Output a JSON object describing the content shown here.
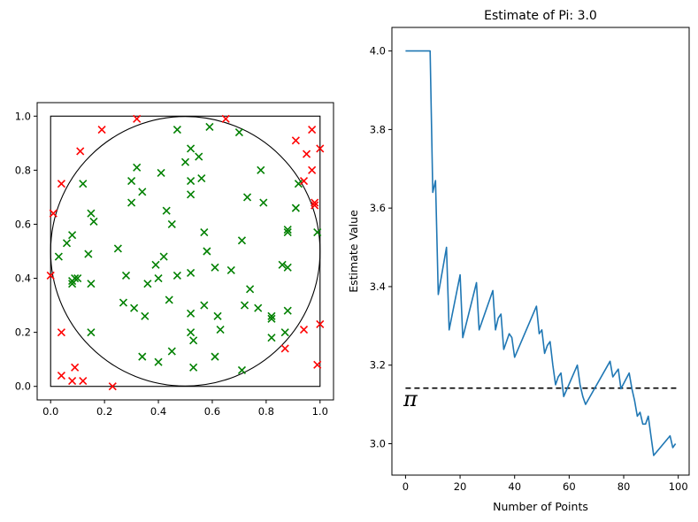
{
  "chart_data": [
    {
      "type": "scatter",
      "title": "",
      "xlabel": "",
      "ylabel": "",
      "xlim": [
        -0.05,
        1.05
      ],
      "ylim": [
        -0.05,
        1.05
      ],
      "xticks": [
        "0.0",
        "0.2",
        "0.4",
        "0.6",
        "0.8",
        "1.0"
      ],
      "yticks": [
        "0.0",
        "0.2",
        "0.4",
        "0.6",
        "0.8",
        "1.0"
      ],
      "shapes": {
        "unit_square": [
          0,
          0,
          1,
          1
        ],
        "circle": {
          "center": [
            0.5,
            0.5
          ],
          "radius": 0.5
        }
      },
      "marker": "x",
      "series": [
        {
          "color": "#008000",
          "points": [
            [
              0.32,
              0.81
            ],
            [
              0.47,
              0.95
            ],
            [
              0.5,
              0.83
            ],
            [
              0.52,
              0.88
            ],
            [
              0.55,
              0.85
            ],
            [
              0.59,
              0.96
            ],
            [
              0.7,
              0.94
            ],
            [
              0.12,
              0.75
            ],
            [
              0.3,
              0.76
            ],
            [
              0.34,
              0.72
            ],
            [
              0.41,
              0.79
            ],
            [
              0.52,
              0.76
            ],
            [
              0.56,
              0.77
            ],
            [
              0.52,
              0.71
            ],
            [
              0.78,
              0.8
            ],
            [
              0.92,
              0.75
            ],
            [
              0.3,
              0.68
            ],
            [
              0.43,
              0.65
            ],
            [
              0.73,
              0.7
            ],
            [
              0.79,
              0.68
            ],
            [
              0.15,
              0.64
            ],
            [
              0.16,
              0.61
            ],
            [
              0.45,
              0.6
            ],
            [
              0.91,
              0.66
            ],
            [
              0.08,
              0.56
            ],
            [
              0.06,
              0.53
            ],
            [
              0.57,
              0.57
            ],
            [
              0.71,
              0.54
            ],
            [
              0.88,
              0.57
            ],
            [
              0.88,
              0.58
            ],
            [
              0.99,
              0.57
            ],
            [
              0.03,
              0.48
            ],
            [
              0.14,
              0.49
            ],
            [
              0.25,
              0.51
            ],
            [
              0.42,
              0.48
            ],
            [
              0.39,
              0.45
            ],
            [
              0.58,
              0.5
            ],
            [
              0.61,
              0.44
            ],
            [
              0.86,
              0.45
            ],
            [
              0.88,
              0.44
            ],
            [
              0.08,
              0.39
            ],
            [
              0.08,
              0.38
            ],
            [
              0.09,
              0.4
            ],
            [
              0.1,
              0.4
            ],
            [
              0.15,
              0.38
            ],
            [
              0.28,
              0.41
            ],
            [
              0.36,
              0.38
            ],
            [
              0.4,
              0.4
            ],
            [
              0.47,
              0.41
            ],
            [
              0.52,
              0.42
            ],
            [
              0.67,
              0.43
            ],
            [
              0.74,
              0.36
            ],
            [
              0.27,
              0.31
            ],
            [
              0.31,
              0.29
            ],
            [
              0.35,
              0.26
            ],
            [
              0.44,
              0.32
            ],
            [
              0.52,
              0.27
            ],
            [
              0.57,
              0.3
            ],
            [
              0.62,
              0.26
            ],
            [
              0.72,
              0.3
            ],
            [
              0.77,
              0.29
            ],
            [
              0.82,
              0.26
            ],
            [
              0.82,
              0.25
            ],
            [
              0.88,
              0.28
            ],
            [
              0.15,
              0.2
            ],
            [
              0.52,
              0.2
            ],
            [
              0.53,
              0.17
            ],
            [
              0.63,
              0.21
            ],
            [
              0.82,
              0.18
            ],
            [
              0.87,
              0.2
            ],
            [
              0.34,
              0.11
            ],
            [
              0.4,
              0.09
            ],
            [
              0.45,
              0.13
            ],
            [
              0.61,
              0.11
            ],
            [
              0.53,
              0.07
            ],
            [
              0.71,
              0.06
            ]
          ]
        },
        {
          "color": "#ff0000",
          "points": [
            [
              0.19,
              0.95
            ],
            [
              0.32,
              0.99
            ],
            [
              0.65,
              0.99
            ],
            [
              0.91,
              0.91
            ],
            [
              0.97,
              0.95
            ],
            [
              0.11,
              0.87
            ],
            [
              0.95,
              0.86
            ],
            [
              0.97,
              0.8
            ],
            [
              1.0,
              0.88
            ],
            [
              0.04,
              0.75
            ],
            [
              0.94,
              0.76
            ],
            [
              0.98,
              0.67
            ],
            [
              0.98,
              0.68
            ],
            [
              0.01,
              0.64
            ],
            [
              0.0,
              0.41
            ],
            [
              0.04,
              0.2
            ],
            [
              0.94,
              0.21
            ],
            [
              1.0,
              0.23
            ],
            [
              0.87,
              0.14
            ],
            [
              0.09,
              0.07
            ],
            [
              0.04,
              0.04
            ],
            [
              0.08,
              0.02
            ],
            [
              0.12,
              0.02
            ],
            [
              0.23,
              0.0
            ],
            [
              0.99,
              0.08
            ]
          ]
        }
      ]
    },
    {
      "type": "line",
      "title": "Estimate of Pi: 3.0",
      "xlabel": "Number of Points",
      "ylabel": "Estimate Value",
      "xlim": [
        -5,
        104
      ],
      "ylim": [
        2.92,
        4.06
      ],
      "xticks": [
        0,
        20,
        40,
        60,
        80,
        100
      ],
      "yticks": [
        3.0,
        3.2,
        3.4,
        3.6,
        3.8,
        4.0
      ],
      "ytick_labels": [
        "3.0",
        "3.2",
        "3.4",
        "3.6",
        "3.8",
        "4.0"
      ],
      "reference_line": {
        "value": 3.1416,
        "style": "dashed",
        "color": "#000000",
        "label": "π"
      },
      "series": [
        {
          "color": "#1f77b4",
          "x": [
            0,
            9,
            10,
            11,
            12,
            15,
            16,
            20,
            21,
            26,
            27,
            32,
            33,
            34,
            35,
            36,
            38,
            39,
            40,
            48,
            49,
            50,
            51,
            52,
            53,
            54,
            55,
            56,
            57,
            58,
            63,
            64,
            65,
            66,
            75,
            76,
            77,
            78,
            79,
            82,
            83,
            84,
            85,
            86,
            87,
            88,
            89,
            90,
            91,
            97,
            98,
            99
          ],
          "y": [
            4.0,
            4.0,
            3.64,
            3.67,
            3.38,
            3.5,
            3.29,
            3.43,
            3.27,
            3.41,
            3.29,
            3.39,
            3.29,
            3.32,
            3.33,
            3.24,
            3.28,
            3.27,
            3.22,
            3.35,
            3.28,
            3.29,
            3.23,
            3.25,
            3.26,
            3.2,
            3.15,
            3.17,
            3.18,
            3.12,
            3.2,
            3.15,
            3.12,
            3.1,
            3.21,
            3.17,
            3.18,
            3.19,
            3.14,
            3.18,
            3.14,
            3.11,
            3.07,
            3.08,
            3.05,
            3.05,
            3.07,
            3.02,
            2.97,
            3.02,
            2.99,
            3.0
          ]
        }
      ]
    }
  ]
}
